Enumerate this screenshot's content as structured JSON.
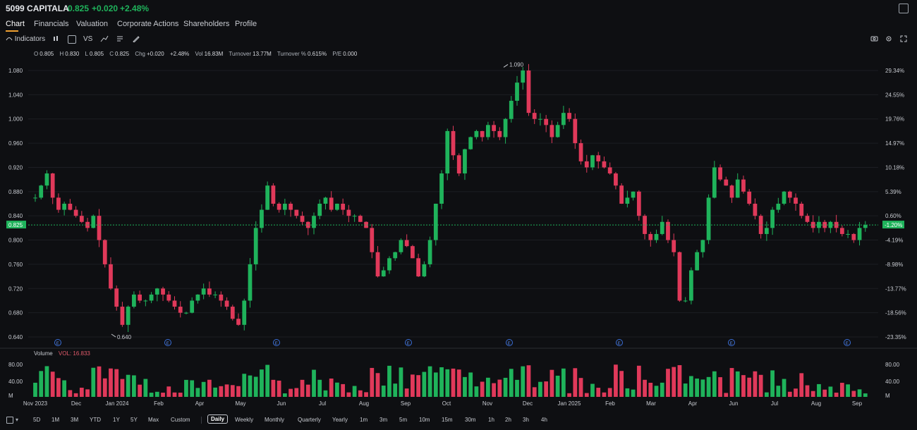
{
  "header": {
    "ticker": "5099 CAPITALA",
    "price": "0.825",
    "change": "+0.020",
    "change_pct": "+2.48%"
  },
  "tabs": [
    {
      "label": "Chart"
    },
    {
      "label": "Financials"
    },
    {
      "label": "Valuation"
    },
    {
      "label": "Corporate Actions"
    },
    {
      "label": "Shareholders"
    },
    {
      "label": "Profile"
    }
  ],
  "toolbar": {
    "indicators_label": "Indicators",
    "vs_label": "VS"
  },
  "ohlc": {
    "o_label": "O",
    "o": "0.805",
    "h_label": "H",
    "h": "0.830",
    "l_label": "L",
    "l": "0.805",
    "c_label": "C",
    "c": "0.825",
    "chg_label": "Chg",
    "chg": "+0.020",
    "chg_pct": "+2.48%",
    "vol_label": "Vol",
    "vol": "16.83M",
    "turnover_label": "Turnover",
    "turnover": "13.77M",
    "turnover_pct_label": "Turnover %",
    "turnover_pct": "0.615%",
    "pe_label": "P/E",
    "pe": "0.000"
  },
  "volume": {
    "title": "Volume",
    "vol_label": "VOL: 16.833"
  },
  "chart_data": {
    "type": "candlestick",
    "title": "",
    "y_ticks": [
      "1.080",
      "1.040",
      "1.000",
      "0.960",
      "0.920",
      "0.880",
      "0.840",
      "0.800",
      "0.760",
      "0.720",
      "0.680",
      "0.640"
    ],
    "y_pct_ticks": [
      "29.34%",
      "24.55%",
      "19.76%",
      "14.97%",
      "10.18%",
      "5.39%",
      "0.60%",
      "-4.19%",
      "-8.98%",
      "-13.77%",
      "-18.56%",
      "-23.35%"
    ],
    "ylim": [
      0.628,
      1.098
    ],
    "current_price_label": "0.825",
    "current_pct_label": "-1.20%",
    "max_label": "1.090",
    "min_label": "0.640",
    "x_labels": [
      "Nov 2023",
      "Dec",
      "Jan 2024",
      "Feb",
      "Apr",
      "May",
      "Jun",
      "Jul",
      "Aug",
      "Sep",
      "Oct",
      "Nov",
      "Dec",
      "Jan 2025",
      "Feb",
      "Mar",
      "Apr",
      "Jun",
      "Jul",
      "Aug",
      "Sep"
    ],
    "volume_ticks": [
      "80.00",
      "40.00",
      "M"
    ],
    "earnings_marker": "E",
    "close_series": [
      0.87,
      0.89,
      0.91,
      0.87,
      0.85,
      0.86,
      0.85,
      0.84,
      0.83,
      0.82,
      0.84,
      0.8,
      0.76,
      0.72,
      0.69,
      0.66,
      0.69,
      0.71,
      0.7,
      0.7,
      0.71,
      0.72,
      0.71,
      0.7,
      0.69,
      0.68,
      0.68,
      0.7,
      0.71,
      0.72,
      0.71,
      0.71,
      0.7,
      0.69,
      0.67,
      0.66,
      0.7,
      0.76,
      0.82,
      0.85,
      0.89,
      0.86,
      0.85,
      0.86,
      0.85,
      0.84,
      0.83,
      0.82,
      0.84,
      0.86,
      0.87,
      0.85,
      0.86,
      0.85,
      0.84,
      0.84,
      0.83,
      0.82,
      0.78,
      0.74,
      0.75,
      0.77,
      0.78,
      0.8,
      0.79,
      0.77,
      0.74,
      0.76,
      0.8,
      0.86,
      0.91,
      0.98,
      0.94,
      0.91,
      0.95,
      0.97,
      0.98,
      0.97,
      0.99,
      0.98,
      0.97,
      1.0,
      1.03,
      1.06,
      1.08,
      1.01,
      1.0,
      1.0,
      0.99,
      0.97,
      0.99,
      1.01,
      1.0,
      0.96,
      0.93,
      0.92,
      0.94,
      0.93,
      0.92,
      0.91,
      0.89,
      0.86,
      0.87,
      0.88,
      0.84,
      0.81,
      0.8,
      0.81,
      0.83,
      0.8,
      0.78,
      0.7,
      0.7,
      0.75,
      0.78,
      0.8,
      0.87,
      0.92,
      0.9,
      0.89,
      0.87,
      0.9,
      0.88,
      0.86,
      0.84,
      0.81,
      0.82,
      0.85,
      0.86,
      0.88,
      0.87,
      0.86,
      0.84,
      0.83,
      0.82,
      0.83,
      0.82,
      0.83,
      0.82,
      0.81,
      0.81,
      0.8,
      0.82,
      0.825
    ]
  }
}
